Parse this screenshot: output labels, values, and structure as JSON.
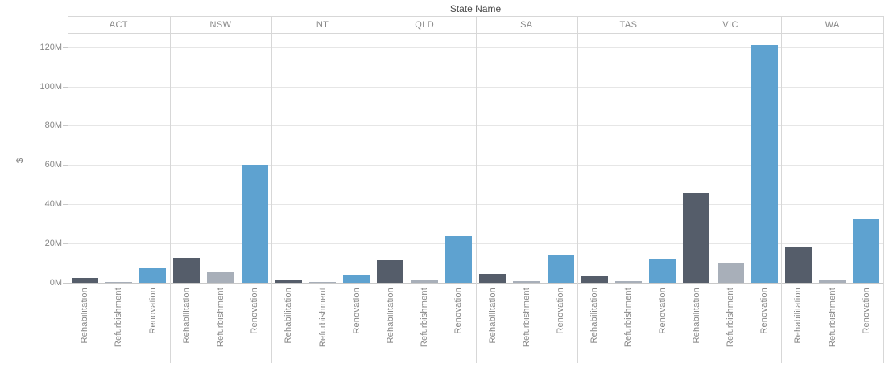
{
  "chart_data": {
    "type": "bar",
    "title": "State Name",
    "ylabel": "$",
    "categories": [
      "ACT",
      "NSW",
      "NT",
      "QLD",
      "SA",
      "TAS",
      "VIC",
      "WA"
    ],
    "sub_categories": [
      "Rehabilitation",
      "Refurbishment",
      "Renovation"
    ],
    "series": [
      {
        "name": "ACT",
        "values": [
          2.3,
          0.4,
          7.2
        ]
      },
      {
        "name": "NSW",
        "values": [
          12.5,
          5.5,
          60.0
        ]
      },
      {
        "name": "NT",
        "values": [
          1.6,
          0.5,
          4.1
        ]
      },
      {
        "name": "QLD",
        "values": [
          11.6,
          1.4,
          23.7
        ]
      },
      {
        "name": "SA",
        "values": [
          4.4,
          1.0,
          14.2
        ]
      },
      {
        "name": "TAS",
        "values": [
          3.4,
          0.9,
          12.3
        ]
      },
      {
        "name": "VIC",
        "values": [
          45.8,
          10.3,
          121.0
        ]
      },
      {
        "name": "WA",
        "values": [
          18.5,
          1.2,
          32.3
        ]
      }
    ],
    "unit": "M",
    "y_tick_values": [
      0,
      20,
      40,
      60,
      80,
      100,
      120
    ],
    "y_tick_labels": [
      "0M",
      "20M",
      "40M",
      "60M",
      "80M",
      "100M",
      "120M"
    ],
    "ylim": [
      0,
      127
    ],
    "grid": true,
    "legend": "none",
    "colors": {
      "Rehabilitation": "#555D6A",
      "Refurbishment": "#A8AFB9",
      "Renovation": "#5EA2D0"
    },
    "axis_colors": {
      "gridline": "#E6E6E6",
      "pane_border": "#D7D7D7",
      "axis_line": "#C9C9C9",
      "tick_text": "#878787",
      "title_text": "#4A4A4A"
    }
  }
}
